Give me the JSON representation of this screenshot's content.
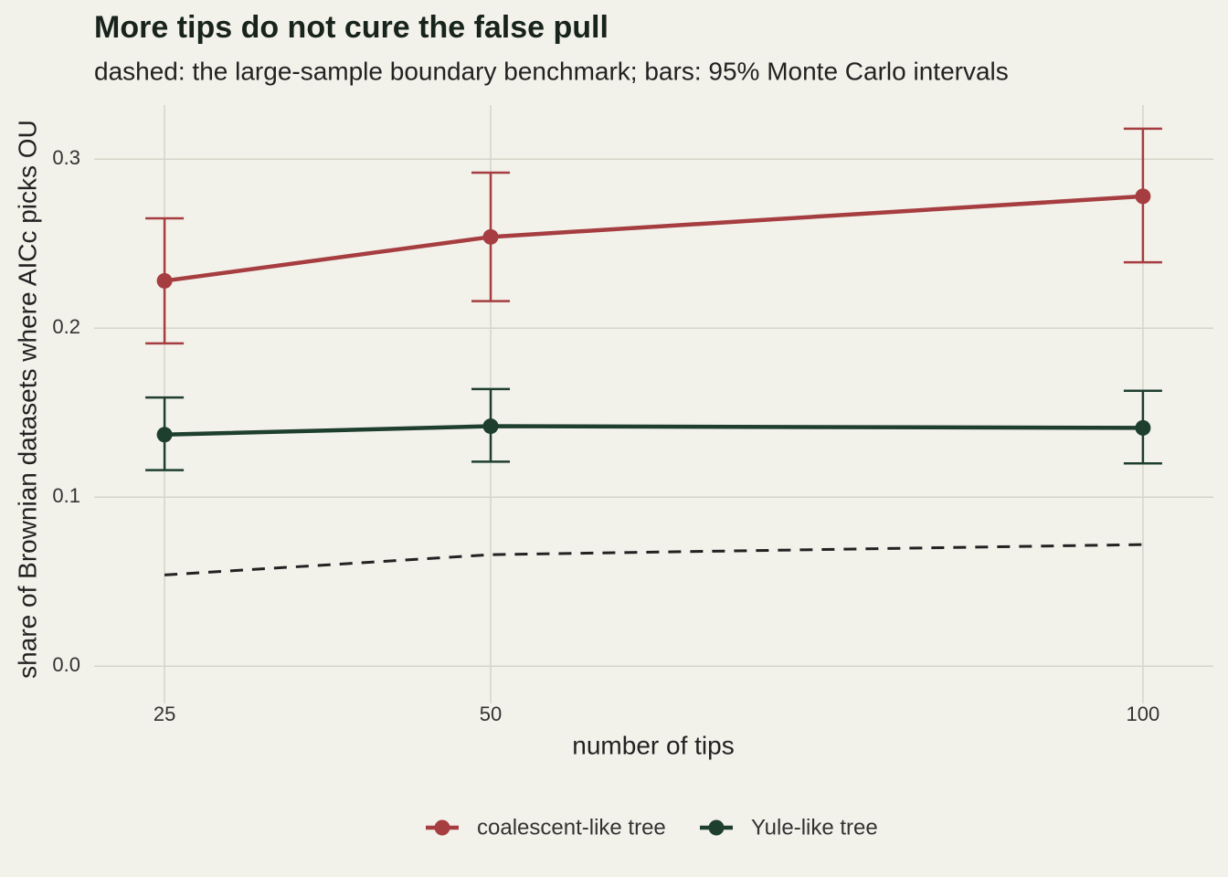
{
  "chart_data": {
    "type": "line",
    "title": "More tips do not cure the false pull",
    "subtitle": "dashed: the large-sample boundary benchmark; bars: 95% Monte Carlo intervals",
    "x_label": "number of tips",
    "y_label": "share of Brownian datasets where AICc picks OU",
    "x": [
      25,
      50,
      100
    ],
    "series": [
      {
        "name": "coalescent-like tree",
        "color": "#a63d40",
        "values": [
          0.228,
          0.254,
          0.278
        ],
        "lower": [
          0.191,
          0.216,
          0.239
        ],
        "upper": [
          0.265,
          0.292,
          0.318
        ]
      },
      {
        "name": "Yule-like tree",
        "color": "#1e3f2e",
        "values": [
          0.137,
          0.142,
          0.141
        ],
        "lower": [
          0.116,
          0.121,
          0.12
        ],
        "upper": [
          0.159,
          0.164,
          0.163
        ]
      }
    ],
    "benchmark": {
      "color": "#222222",
      "values": [
        0.054,
        0.066,
        0.072
      ]
    },
    "xlim": [
      19.6,
      105.4
    ],
    "xticks": [
      25,
      50,
      100
    ],
    "ylim": [
      -0.022,
      0.332
    ],
    "yticks": [
      {
        "value": 0,
        "label": "0.0"
      },
      0.1,
      0.2,
      0.3
    ],
    "grid": true,
    "legend": "bottom"
  }
}
